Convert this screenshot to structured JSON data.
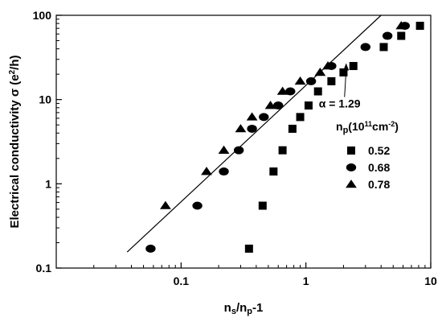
{
  "chart_data": {
    "type": "scatter",
    "xlabel": {
      "base": "n",
      "sub1": "s",
      "mid": "/n",
      "sub2": "p",
      "tail": "-1"
    },
    "ylabel": {
      "pre": "Electrical conductivity σ (e",
      "sup": "2",
      "post": "/h)"
    },
    "x_scale": "log",
    "y_scale": "log",
    "xlim": [
      0.01,
      10
    ],
    "ylim": [
      0.1,
      100
    ],
    "x_ticks": [
      0.1,
      1,
      10
    ],
    "x_tick_labels": [
      "0.1",
      "1",
      "10"
    ],
    "y_ticks": [
      0.1,
      1,
      10,
      100
    ],
    "y_tick_labels": [
      "0.1",
      "1",
      "10",
      "100"
    ],
    "grid": false,
    "legend_position": "right",
    "legend_title": {
      "base": "n",
      "sub": "p",
      "mid": "(10",
      "sup1": "11",
      "unit": "cm",
      "sup2": "-2",
      "close": ")"
    },
    "series": [
      {
        "name": "0.52",
        "marker": "square",
        "x": [
          0.35,
          0.45,
          0.55,
          0.65,
          0.78,
          0.9,
          1.05,
          1.25,
          1.6,
          2.0,
          2.4,
          4.2,
          5.8,
          8.2
        ],
        "y": [
          0.17,
          0.55,
          1.4,
          2.5,
          4.5,
          6.2,
          8.5,
          12.5,
          16.5,
          21,
          25,
          42,
          57,
          75
        ]
      },
      {
        "name": "0.68",
        "marker": "circle",
        "x": [
          0.057,
          0.135,
          0.22,
          0.29,
          0.37,
          0.46,
          0.6,
          0.75,
          1.1,
          1.6,
          3.0,
          4.5,
          6.2
        ],
        "y": [
          0.17,
          0.55,
          1.4,
          2.5,
          4.5,
          6.2,
          8.5,
          12.5,
          16.5,
          25,
          42,
          57,
          75
        ]
      },
      {
        "name": "0.78",
        "marker": "triangle",
        "x": [
          0.075,
          0.16,
          0.22,
          0.3,
          0.37,
          0.52,
          0.65,
          0.9,
          1.3,
          1.5,
          5.8
        ],
        "y": [
          0.55,
          1.4,
          2.5,
          4.5,
          6.2,
          8.5,
          12.5,
          16.5,
          21,
          25,
          75
        ]
      }
    ],
    "fit_line": {
      "x_start": 0.037,
      "x_end": 4.0,
      "y_start": 0.155,
      "y_end": 100
    },
    "annotation": {
      "text": "α = 1.29",
      "arrow_to_x": 2.1,
      "arrow_to_y": 27
    }
  }
}
